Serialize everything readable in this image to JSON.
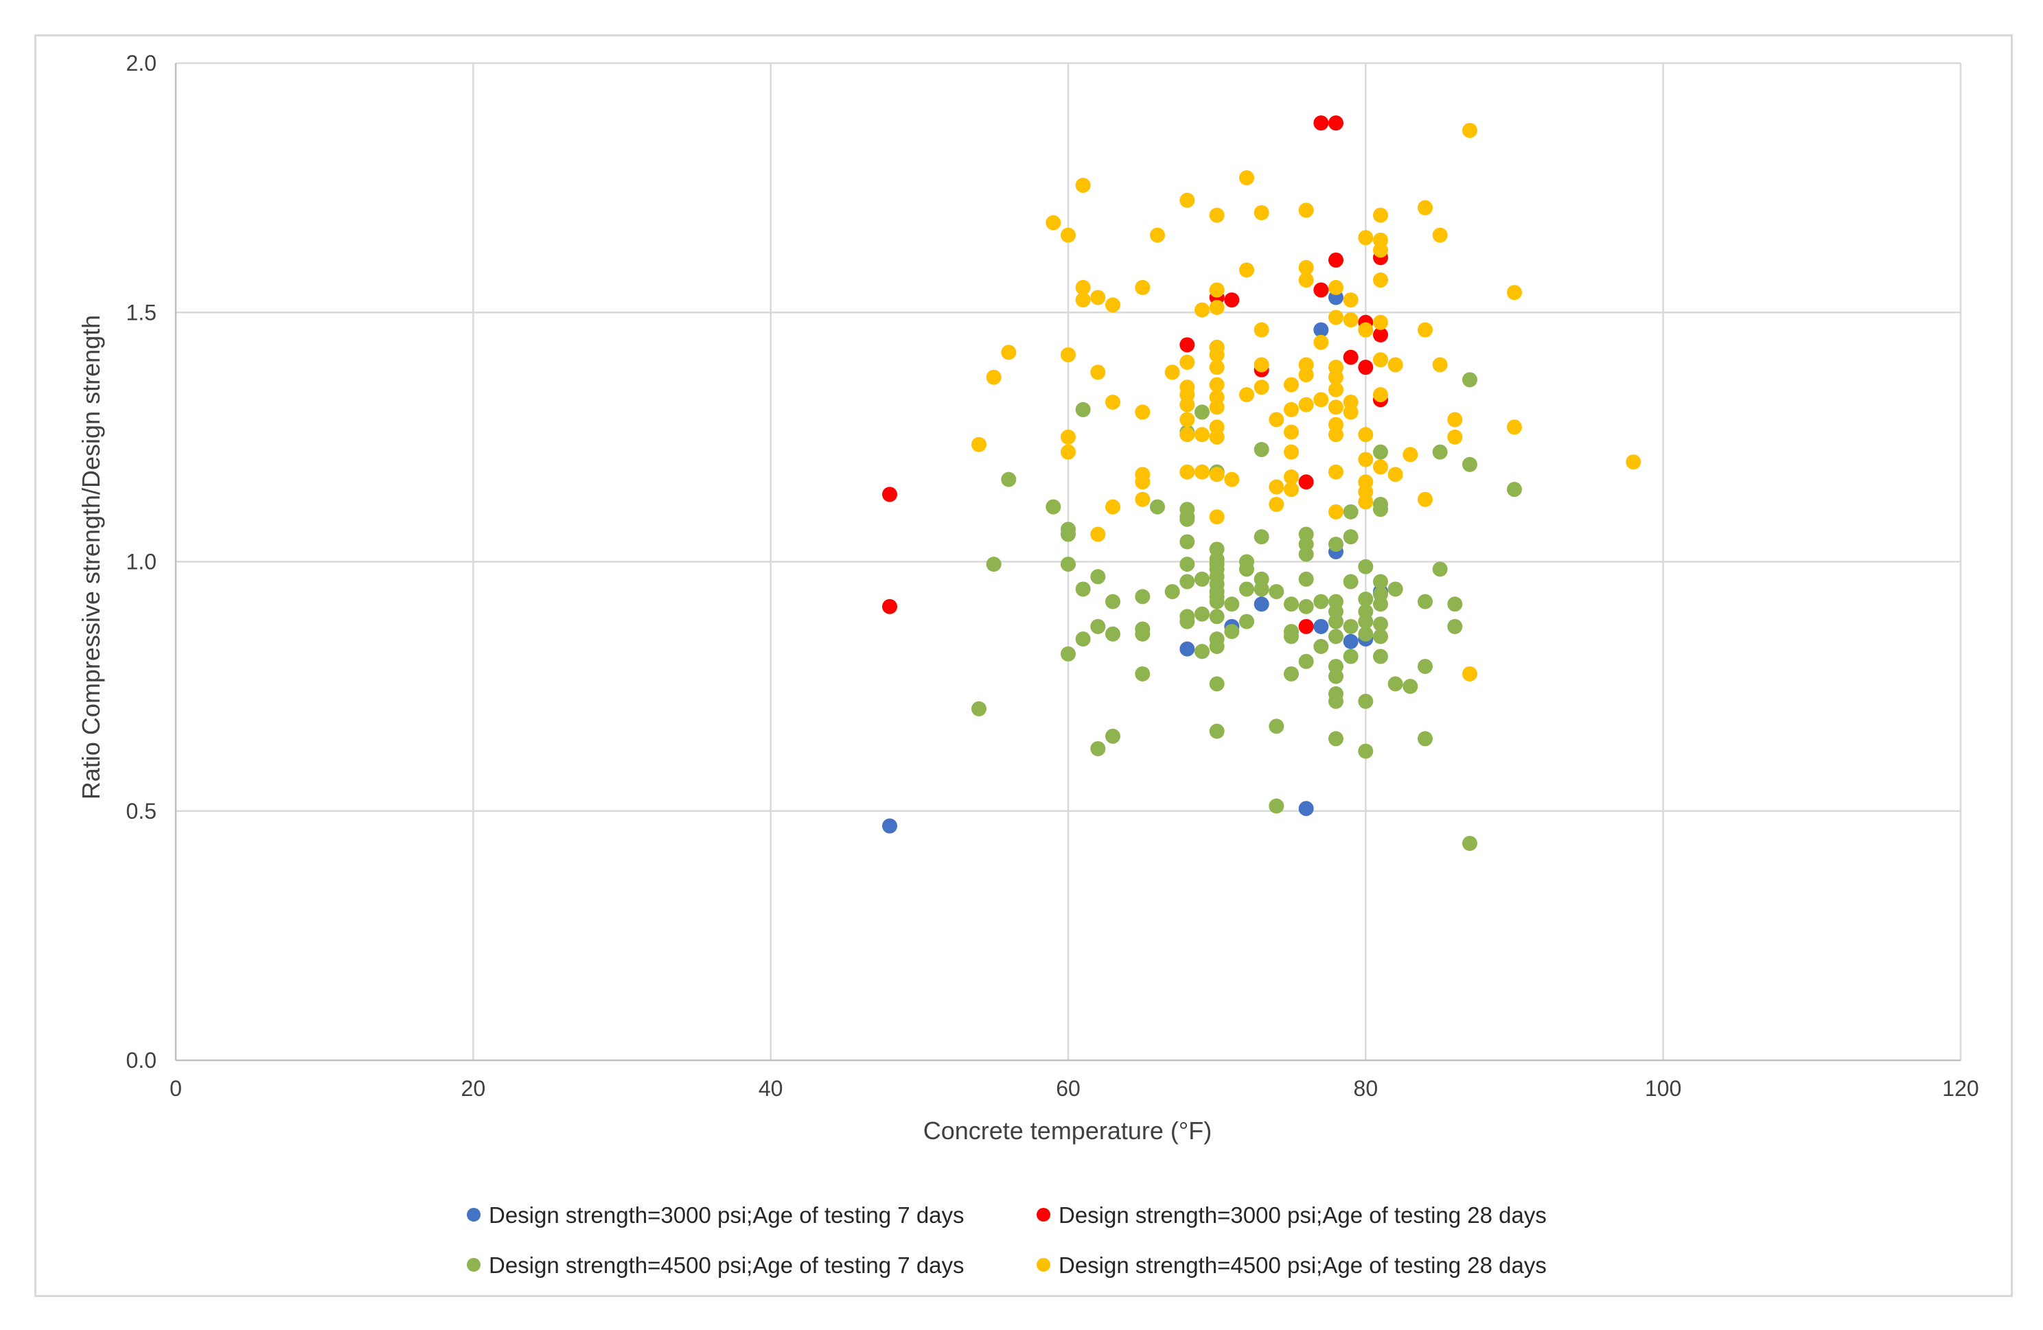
{
  "chart_data": {
    "type": "scatter",
    "title": "",
    "xlabel": "Concrete temperature (°F)",
    "ylabel": "Ratio Compressive strength/Design strength",
    "xlim": [
      0,
      120
    ],
    "ylim": [
      0.0,
      2.0
    ],
    "xticks": [
      0,
      20,
      40,
      60,
      80,
      100,
      120
    ],
    "yticks": [
      0.0,
      0.5,
      1.0,
      1.5,
      2.0
    ],
    "xtick_labels": [
      "0",
      "20",
      "40",
      "60",
      "80",
      "100",
      "120"
    ],
    "ytick_labels": [
      "0.0",
      "0.5",
      "1.0",
      "1.5",
      "2.0"
    ],
    "grid": true,
    "legend_position": "bottom",
    "series": [
      {
        "name": "Design strength=3000 psi;Age of testing 7 days",
        "color": "#4472c4",
        "points": [
          [
            48,
            0.47
          ],
          [
            76,
            0.505
          ],
          [
            68,
            0.825
          ],
          [
            71,
            0.87
          ],
          [
            73,
            0.915
          ],
          [
            77,
            0.87
          ],
          [
            79,
            0.84
          ],
          [
            80,
            0.845
          ],
          [
            81,
            0.94
          ],
          [
            78,
            1.02
          ],
          [
            77,
            1.465
          ],
          [
            78,
            1.53
          ],
          [
            70,
            1.43
          ],
          [
            70,
            1.18
          ]
        ]
      },
      {
        "name": "Design strength=3000 psi;Age of testing 28 days",
        "color": "#ff0000",
        "points": [
          [
            48,
            1.135
          ],
          [
            48,
            0.91
          ],
          [
            68,
            1.435
          ],
          [
            71,
            1.525
          ],
          [
            73,
            1.385
          ],
          [
            76,
            1.16
          ],
          [
            76,
            0.87
          ],
          [
            77,
            1.545
          ],
          [
            77,
            1.88
          ],
          [
            78,
            1.88
          ],
          [
            78,
            1.605
          ],
          [
            79,
            1.41
          ],
          [
            80,
            1.48
          ],
          [
            80,
            1.39
          ],
          [
            81,
            1.61
          ],
          [
            81,
            1.455
          ],
          [
            81,
            1.325
          ],
          [
            70,
            1.53
          ]
        ]
      },
      {
        "name": "Design strength=4500 psi;Age of testing 7 days",
        "color": "#8fb34f",
        "points": [
          [
            54,
            0.705
          ],
          [
            55,
            0.995
          ],
          [
            56,
            1.165
          ],
          [
            59,
            1.11
          ],
          [
            60,
            1.065
          ],
          [
            60,
            1.055
          ],
          [
            60,
            0.995
          ],
          [
            60,
            0.815
          ],
          [
            61,
            1.305
          ],
          [
            61,
            0.945
          ],
          [
            61,
            0.845
          ],
          [
            62,
            0.97
          ],
          [
            62,
            0.87
          ],
          [
            62,
            0.625
          ],
          [
            63,
            0.92
          ],
          [
            63,
            0.855
          ],
          [
            63,
            0.65
          ],
          [
            65,
            0.93
          ],
          [
            65,
            0.865
          ],
          [
            65,
            0.855
          ],
          [
            65,
            0.775
          ],
          [
            66,
            1.11
          ],
          [
            67,
            0.94
          ],
          [
            68,
            1.26
          ],
          [
            68,
            1.105
          ],
          [
            68,
            1.09
          ],
          [
            68,
            1.085
          ],
          [
            68,
            1.04
          ],
          [
            68,
            0.995
          ],
          [
            68,
            0.96
          ],
          [
            68,
            0.89
          ],
          [
            68,
            0.88
          ],
          [
            69,
            1.3
          ],
          [
            69,
            0.965
          ],
          [
            69,
            0.895
          ],
          [
            69,
            0.82
          ],
          [
            70,
            1.18
          ],
          [
            70,
            1.025
          ],
          [
            70,
            1.005
          ],
          [
            70,
            0.995
          ],
          [
            70,
            0.985
          ],
          [
            70,
            0.97
          ],
          [
            70,
            0.955
          ],
          [
            70,
            0.94
          ],
          [
            70,
            0.93
          ],
          [
            70,
            0.92
          ],
          [
            70,
            0.89
          ],
          [
            70,
            0.845
          ],
          [
            70,
            0.83
          ],
          [
            70,
            0.755
          ],
          [
            70,
            0.66
          ],
          [
            71,
            0.915
          ],
          [
            71,
            0.86
          ],
          [
            72,
            1.0
          ],
          [
            72,
            0.985
          ],
          [
            72,
            0.945
          ],
          [
            72,
            0.88
          ],
          [
            73,
            1.225
          ],
          [
            73,
            1.05
          ],
          [
            73,
            0.965
          ],
          [
            73,
            0.945
          ],
          [
            74,
            0.94
          ],
          [
            74,
            0.67
          ],
          [
            74,
            0.51
          ],
          [
            75,
            0.915
          ],
          [
            75,
            0.86
          ],
          [
            75,
            0.85
          ],
          [
            75,
            0.775
          ],
          [
            76,
            1.055
          ],
          [
            76,
            1.035
          ],
          [
            76,
            1.015
          ],
          [
            76,
            0.965
          ],
          [
            76,
            0.91
          ],
          [
            76,
            0.8
          ],
          [
            77,
            0.92
          ],
          [
            77,
            0.83
          ],
          [
            78,
            1.035
          ],
          [
            78,
            0.92
          ],
          [
            78,
            0.9
          ],
          [
            78,
            0.88
          ],
          [
            78,
            0.85
          ],
          [
            78,
            0.79
          ],
          [
            78,
            0.77
          ],
          [
            78,
            0.735
          ],
          [
            78,
            0.72
          ],
          [
            78,
            0.645
          ],
          [
            79,
            1.1
          ],
          [
            79,
            1.05
          ],
          [
            79,
            0.96
          ],
          [
            79,
            0.87
          ],
          [
            79,
            0.81
          ],
          [
            80,
            0.99
          ],
          [
            80,
            0.925
          ],
          [
            80,
            0.9
          ],
          [
            80,
            0.88
          ],
          [
            80,
            0.855
          ],
          [
            80,
            0.72
          ],
          [
            80,
            0.62
          ],
          [
            81,
            1.22
          ],
          [
            81,
            1.115
          ],
          [
            81,
            1.105
          ],
          [
            81,
            0.96
          ],
          [
            81,
            0.935
          ],
          [
            81,
            0.915
          ],
          [
            81,
            0.875
          ],
          [
            81,
            0.85
          ],
          [
            81,
            0.81
          ],
          [
            82,
            0.945
          ],
          [
            82,
            0.755
          ],
          [
            83,
            0.75
          ],
          [
            84,
            0.92
          ],
          [
            84,
            0.79
          ],
          [
            84,
            0.645
          ],
          [
            85,
            1.22
          ],
          [
            85,
            0.985
          ],
          [
            86,
            0.915
          ],
          [
            86,
            0.87
          ],
          [
            87,
            1.365
          ],
          [
            87,
            1.195
          ],
          [
            87,
            0.435
          ],
          [
            90,
            1.145
          ]
        ]
      },
      {
        "name": "Design strength=4500 psi;Age of testing 28 days",
        "color": "#ffc000",
        "points": [
          [
            54,
            1.235
          ],
          [
            55,
            1.37
          ],
          [
            56,
            1.42
          ],
          [
            59,
            1.68
          ],
          [
            60,
            1.655
          ],
          [
            60,
            1.415
          ],
          [
            60,
            1.25
          ],
          [
            60,
            1.22
          ],
          [
            61,
            1.755
          ],
          [
            61,
            1.55
          ],
          [
            61,
            1.525
          ],
          [
            62,
            1.53
          ],
          [
            62,
            1.38
          ],
          [
            62,
            1.055
          ],
          [
            63,
            1.515
          ],
          [
            63,
            1.32
          ],
          [
            63,
            1.11
          ],
          [
            65,
            1.55
          ],
          [
            65,
            1.3
          ],
          [
            65,
            1.175
          ],
          [
            65,
            1.16
          ],
          [
            65,
            1.125
          ],
          [
            66,
            1.655
          ],
          [
            67,
            1.38
          ],
          [
            68,
            1.725
          ],
          [
            68,
            1.4
          ],
          [
            68,
            1.35
          ],
          [
            68,
            1.335
          ],
          [
            68,
            1.315
          ],
          [
            68,
            1.285
          ],
          [
            68,
            1.255
          ],
          [
            68,
            1.18
          ],
          [
            69,
            1.505
          ],
          [
            69,
            1.255
          ],
          [
            69,
            1.18
          ],
          [
            70,
            1.695
          ],
          [
            70,
            1.545
          ],
          [
            70,
            1.51
          ],
          [
            70,
            1.43
          ],
          [
            70,
            1.415
          ],
          [
            70,
            1.39
          ],
          [
            70,
            1.355
          ],
          [
            70,
            1.33
          ],
          [
            70,
            1.31
          ],
          [
            70,
            1.27
          ],
          [
            70,
            1.25
          ],
          [
            70,
            1.175
          ],
          [
            70,
            1.09
          ],
          [
            71,
            1.165
          ],
          [
            72,
            1.77
          ],
          [
            72,
            1.585
          ],
          [
            72,
            1.335
          ],
          [
            73,
            1.7
          ],
          [
            73,
            1.465
          ],
          [
            73,
            1.395
          ],
          [
            73,
            1.35
          ],
          [
            74,
            1.285
          ],
          [
            74,
            1.15
          ],
          [
            74,
            1.115
          ],
          [
            75,
            1.355
          ],
          [
            75,
            1.305
          ],
          [
            75,
            1.26
          ],
          [
            75,
            1.22
          ],
          [
            75,
            1.17
          ],
          [
            75,
            1.145
          ],
          [
            76,
            1.705
          ],
          [
            76,
            1.59
          ],
          [
            76,
            1.565
          ],
          [
            76,
            1.395
          ],
          [
            76,
            1.375
          ],
          [
            76,
            1.315
          ],
          [
            77,
            1.44
          ],
          [
            77,
            1.325
          ],
          [
            78,
            1.55
          ],
          [
            78,
            1.49
          ],
          [
            78,
            1.39
          ],
          [
            78,
            1.37
          ],
          [
            78,
            1.345
          ],
          [
            78,
            1.31
          ],
          [
            78,
            1.275
          ],
          [
            78,
            1.255
          ],
          [
            78,
            1.18
          ],
          [
            78,
            1.1
          ],
          [
            79,
            1.525
          ],
          [
            79,
            1.485
          ],
          [
            79,
            1.32
          ],
          [
            79,
            1.3
          ],
          [
            80,
            1.65
          ],
          [
            80,
            1.465
          ],
          [
            80,
            1.255
          ],
          [
            80,
            1.205
          ],
          [
            80,
            1.16
          ],
          [
            80,
            1.14
          ],
          [
            80,
            1.12
          ],
          [
            81,
            1.695
          ],
          [
            81,
            1.645
          ],
          [
            81,
            1.625
          ],
          [
            81,
            1.565
          ],
          [
            81,
            1.48
          ],
          [
            81,
            1.405
          ],
          [
            81,
            1.335
          ],
          [
            81,
            1.19
          ],
          [
            82,
            1.395
          ],
          [
            82,
            1.175
          ],
          [
            83,
            1.215
          ],
          [
            84,
            1.71
          ],
          [
            84,
            1.465
          ],
          [
            84,
            1.125
          ],
          [
            85,
            1.655
          ],
          [
            85,
            1.395
          ],
          [
            86,
            1.285
          ],
          [
            86,
            1.25
          ],
          [
            87,
            1.865
          ],
          [
            87,
            0.775
          ],
          [
            90,
            1.54
          ],
          [
            90,
            1.27
          ],
          [
            98,
            1.2
          ]
        ]
      }
    ]
  }
}
